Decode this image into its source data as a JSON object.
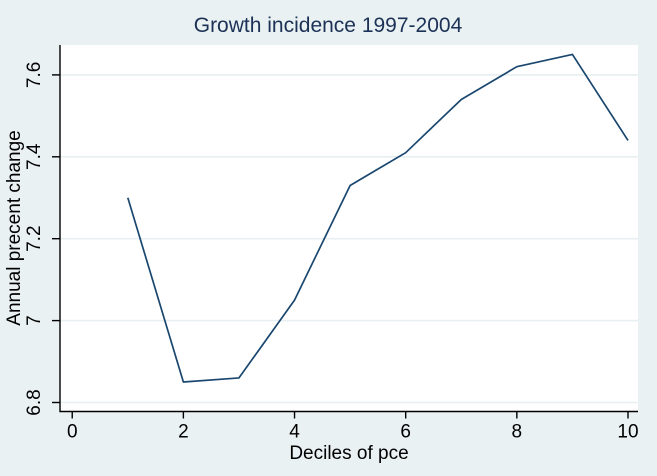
{
  "chart_data": {
    "type": "line",
    "title": "Growth incidence 1997-2004",
    "xlabel": "Deciles of pce",
    "ylabel": "Annual precent change",
    "x": [
      1,
      2,
      3,
      4,
      5,
      6,
      7,
      8,
      9,
      10
    ],
    "y": [
      7.3,
      6.85,
      6.86,
      7.05,
      7.33,
      7.41,
      7.54,
      7.62,
      7.65,
      7.44
    ],
    "xticks": [
      0,
      2,
      4,
      6,
      8,
      10
    ],
    "yticks": [
      6.8,
      7.0,
      7.2,
      7.4,
      7.6
    ],
    "ytick_labels": [
      "6.8",
      "7",
      "7.2",
      "7.4",
      "7.6"
    ],
    "xtick_labels": [
      "0",
      "2",
      "4",
      "6",
      "8",
      "10"
    ],
    "xlim": [
      -0.22,
      10.18
    ],
    "ylim": [
      6.778,
      7.673
    ],
    "grid": "horizontal",
    "legend_position": "none",
    "colors": {
      "line": "#1a476f",
      "outer_background": "#eaf1f2",
      "plot_background": "#ffffff",
      "gridline": "#e7eff1",
      "axis": "#000000",
      "tick_text": "#000000",
      "title_text": "#1b3156"
    }
  }
}
